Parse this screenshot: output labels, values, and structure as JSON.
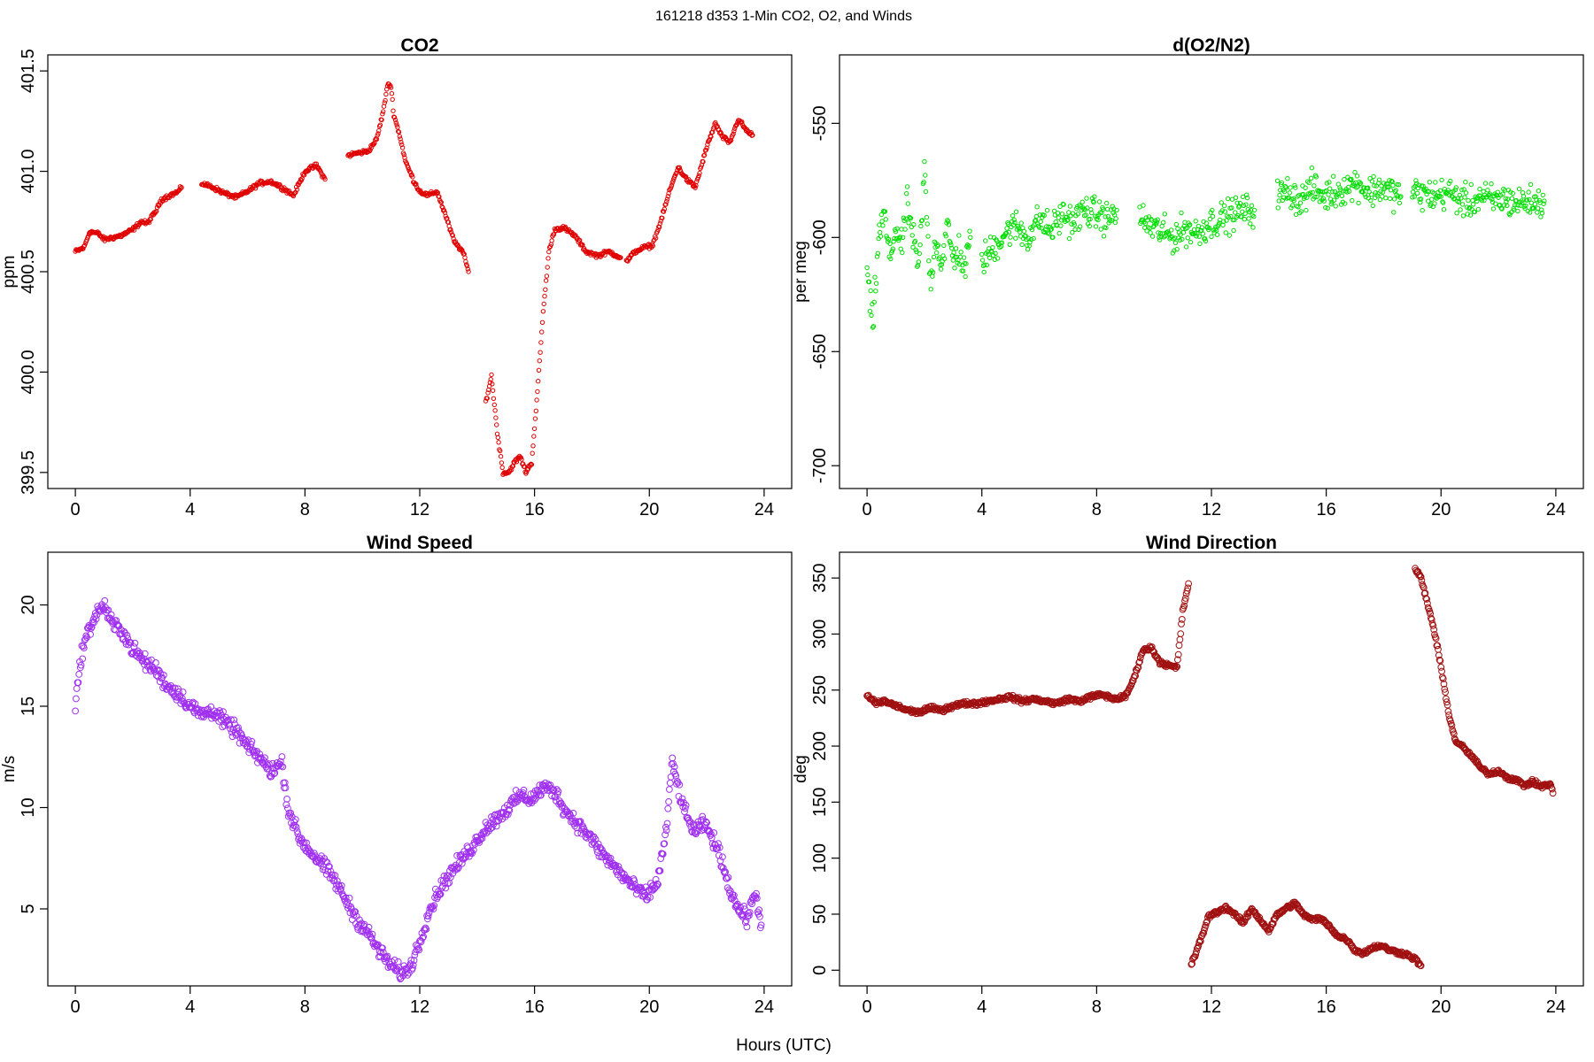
{
  "figure": {
    "title": "161218   d353   1-Min CO2, O2, and Winds",
    "xlabel": "Hours (UTC)"
  },
  "chart_data": [
    {
      "id": "co2",
      "type": "scatter",
      "title": "CO2",
      "ylabel": "ppm",
      "xlim": [
        -0.96,
        24.96
      ],
      "ylim": [
        399.42,
        401.58
      ],
      "xticks": [
        0,
        4,
        8,
        12,
        16,
        20,
        24
      ],
      "yticks": [
        399.5,
        400.0,
        400.5,
        401.0,
        401.5
      ],
      "ytick_labels": [
        "399.5",
        "400.0",
        "400.5",
        "401.0",
        "401.5"
      ],
      "color": "#e00000",
      "marker_size": 2.2,
      "segments": [
        {
          "x": [
            0.0,
            0.3,
            0.5,
            0.8,
            1.0,
            1.3,
            1.6,
            2.0,
            2.3,
            2.5,
            2.8,
            3.0,
            3.3,
            3.6,
            3.7
          ],
          "y": [
            400.6,
            400.62,
            400.7,
            400.69,
            400.66,
            400.67,
            400.68,
            400.71,
            400.75,
            400.74,
            400.8,
            400.86,
            400.88,
            400.9,
            400.92
          ]
        },
        {
          "x": [
            4.4,
            4.8,
            5.2,
            5.6,
            6.0,
            6.4,
            6.8,
            7.2,
            7.6,
            8.0,
            8.4,
            8.7
          ],
          "y": [
            400.94,
            400.92,
            400.89,
            400.87,
            400.9,
            400.94,
            400.95,
            400.92,
            400.88,
            401.0,
            401.03,
            400.96
          ]
        },
        {
          "x": [
            9.5,
            9.8,
            10.2,
            10.5,
            10.7,
            10.9,
            11.0,
            11.1,
            11.3,
            11.5,
            11.8,
            12.0,
            12.3,
            12.6,
            12.9,
            13.2,
            13.5,
            13.7
          ],
          "y": [
            401.08,
            401.09,
            401.1,
            401.16,
            401.28,
            401.44,
            401.42,
            401.28,
            401.18,
            401.05,
            400.95,
            400.9,
            400.88,
            400.9,
            400.78,
            400.65,
            400.6,
            400.5
          ]
        },
        {
          "x": [
            14.3,
            14.5,
            14.7,
            14.9,
            15.1,
            15.3,
            15.5,
            15.7,
            15.9,
            16.1,
            16.3,
            16.5,
            16.7,
            17.0,
            17.4,
            17.8,
            18.2,
            18.6,
            19.0
          ],
          "y": [
            399.85,
            399.98,
            399.7,
            399.5,
            399.5,
            399.55,
            399.58,
            399.5,
            399.55,
            399.9,
            400.3,
            400.6,
            400.71,
            400.72,
            400.68,
            400.6,
            400.58,
            400.6,
            400.57
          ]
        },
        {
          "x": [
            19.2,
            19.5,
            19.8,
            20.1,
            20.4,
            20.7,
            21.0,
            21.3,
            21.6,
            21.8,
            22.0,
            22.3,
            22.5,
            22.8,
            23.1,
            23.4,
            23.6
          ],
          "y": [
            400.55,
            400.6,
            400.62,
            400.63,
            400.75,
            400.9,
            401.02,
            400.96,
            400.92,
            401.02,
            401.12,
            401.24,
            401.18,
            401.14,
            401.26,
            401.2,
            401.18
          ]
        }
      ]
    },
    {
      "id": "o2",
      "type": "scatter",
      "title": "d(O2/N2)",
      "ylabel": "per meg",
      "xlim": [
        -0.96,
        24.96
      ],
      "ylim": [
        -710,
        -520
      ],
      "xticks": [
        0,
        4,
        8,
        12,
        16,
        20,
        24
      ],
      "yticks": [
        -700,
        -650,
        -600,
        -550
      ],
      "ytick_labels": [
        "-700",
        "-650",
        "-600",
        "-550"
      ],
      "color": "#00dd00",
      "marker_size": 2.2,
      "segments": [
        {
          "x": [
            0.0,
            0.2,
            0.4,
            0.6,
            0.8,
            1.0,
            1.2,
            1.4,
            1.6,
            1.8,
            2.0,
            2.2,
            2.4,
            2.6,
            2.8,
            3.0,
            3.2,
            3.4,
            3.6
          ],
          "y": [
            -615,
            -640,
            -600,
            -590,
            -610,
            -595,
            -605,
            -585,
            -600,
            -615,
            -570,
            -620,
            -600,
            -612,
            -595,
            -610,
            -605,
            -615,
            -600
          ]
        },
        {
          "x": [
            4.0,
            4.4,
            4.8,
            5.2,
            5.6,
            6.0,
            6.4,
            6.8,
            7.2,
            7.6,
            8.0,
            8.4,
            8.7
          ],
          "y": [
            -610,
            -605,
            -598,
            -595,
            -600,
            -592,
            -597,
            -590,
            -593,
            -588,
            -590,
            -592,
            -588
          ]
        },
        {
          "x": [
            9.5,
            9.9,
            10.3,
            10.7,
            11.1,
            11.5,
            11.9,
            12.3,
            12.7,
            13.1,
            13.5
          ],
          "y": [
            -592,
            -595,
            -598,
            -600,
            -596,
            -598,
            -594,
            -592,
            -590,
            -588,
            -588
          ]
        },
        {
          "x": [
            14.3,
            14.7,
            15.1,
            15.5,
            15.9,
            16.3,
            16.7,
            17.1,
            17.5,
            17.9,
            18.3,
            18.6
          ],
          "y": [
            -582,
            -580,
            -584,
            -578,
            -582,
            -580,
            -578,
            -576,
            -580,
            -578,
            -580,
            -582
          ]
        },
        {
          "x": [
            19.0,
            19.4,
            19.8,
            20.2,
            20.6,
            21.0,
            21.4,
            21.8,
            22.2,
            22.6,
            23.0,
            23.4,
            23.6
          ],
          "y": [
            -580,
            -581,
            -582,
            -580,
            -583,
            -585,
            -582,
            -584,
            -583,
            -585,
            -584,
            -585,
            -584
          ]
        }
      ]
    },
    {
      "id": "wind-speed",
      "type": "scatter",
      "title": "Wind Speed",
      "ylabel": "m/s",
      "xlim": [
        -0.96,
        24.96
      ],
      "ylim": [
        1.2,
        22.6
      ],
      "xticks": [
        0,
        4,
        8,
        12,
        16,
        20,
        24
      ],
      "yticks": [
        5,
        10,
        15,
        20
      ],
      "ytick_labels": [
        "5",
        "10",
        "15",
        "20"
      ],
      "color": "#a030f0",
      "marker_size": 3.4,
      "segments": [
        {
          "x": [
            0.0,
            0.2,
            0.4,
            0.7,
            1.0,
            1.3,
            1.6,
            2.0,
            2.4,
            2.8,
            3.2,
            3.6,
            4.0,
            4.4,
            4.8,
            5.2,
            5.6,
            6.0,
            6.4,
            6.8,
            7.2,
            7.4,
            7.8,
            8.2,
            8.6,
            9.0,
            9.4,
            9.8,
            10.2,
            10.6,
            11.0,
            11.4,
            11.7,
            12.0,
            12.3,
            12.7,
            13.1,
            13.5,
            13.9,
            14.3,
            14.7,
            15.1,
            15.5,
            15.9,
            16.3,
            16.7,
            17.1,
            17.5,
            17.9,
            18.3,
            18.7,
            19.1,
            19.5,
            19.9,
            20.3,
            20.6,
            20.8,
            21.0,
            21.3,
            21.6,
            21.9,
            22.2,
            22.5,
            22.8,
            23.1,
            23.4,
            23.7,
            23.9
          ],
          "y": [
            15.0,
            17.5,
            18.5,
            19.5,
            20.0,
            19.0,
            18.8,
            17.8,
            17.2,
            16.8,
            16.0,
            15.6,
            15.0,
            14.6,
            14.8,
            14.2,
            13.8,
            13.0,
            12.5,
            11.8,
            12.2,
            10.0,
            8.5,
            7.8,
            7.2,
            6.5,
            5.5,
            4.5,
            3.8,
            2.9,
            2.2,
            1.8,
            2.2,
            3.4,
            4.8,
            6.0,
            6.8,
            7.5,
            8.2,
            9.0,
            9.5,
            10.0,
            10.6,
            10.4,
            11.0,
            10.8,
            9.8,
            9.2,
            8.6,
            7.8,
            7.2,
            6.6,
            6.0,
            5.6,
            6.4,
            9.0,
            12.3,
            11.0,
            9.5,
            8.8,
            9.2,
            8.5,
            7.5,
            6.0,
            5.0,
            4.5,
            5.8,
            4.2
          ]
        }
      ]
    },
    {
      "id": "wind-direction",
      "type": "scatter",
      "title": "Wind Direction",
      "ylabel": "deg",
      "xlim": [
        -0.96,
        24.96
      ],
      "ylim": [
        -14,
        373
      ],
      "xticks": [
        0,
        4,
        8,
        12,
        16,
        20,
        24
      ],
      "yticks": [
        0,
        50,
        100,
        150,
        200,
        250,
        300,
        350
      ],
      "ytick_labels": [
        "0",
        "50",
        "100",
        "150",
        "200",
        "250",
        "300",
        "350"
      ],
      "color": "#a01010",
      "marker_size": 3.4,
      "segments": [
        {
          "x": [
            0.0,
            0.3,
            0.6,
            1.0,
            1.4,
            1.8,
            2.2,
            2.6,
            3.0,
            3.4,
            3.8,
            4.2,
            4.6,
            5.0,
            5.4,
            5.8,
            6.2,
            6.6,
            7.0,
            7.4,
            7.8,
            8.2,
            8.6,
            9.0,
            9.3,
            9.6,
            9.9,
            10.2,
            10.5,
            10.8,
            11.0,
            11.2
          ],
          "y": [
            245,
            238,
            240,
            236,
            232,
            230,
            234,
            232,
            236,
            238,
            238,
            240,
            242,
            244,
            240,
            242,
            240,
            238,
            242,
            240,
            244,
            246,
            242,
            244,
            260,
            285,
            288,
            275,
            272,
            270,
            320,
            345
          ]
        },
        {
          "x": [
            11.3,
            11.6,
            11.9,
            12.2,
            12.5,
            12.8,
            13.1,
            13.4,
            13.7,
            14.0,
            14.3,
            14.6,
            14.9,
            15.2,
            15.5,
            15.8,
            16.1,
            16.4,
            16.7,
            17.0,
            17.3,
            17.6,
            17.9,
            18.2,
            18.5,
            18.8,
            19.1,
            19.3
          ],
          "y": [
            5,
            25,
            48,
            52,
            56,
            50,
            42,
            55,
            45,
            35,
            50,
            55,
            60,
            50,
            45,
            46,
            40,
            30,
            28,
            18,
            15,
            20,
            22,
            18,
            16,
            14,
            10,
            4
          ]
        },
        {
          "x": [
            19.1,
            19.3,
            19.5,
            19.7,
            19.9,
            20.1,
            20.3,
            20.5,
            20.8,
            21.1,
            21.4,
            21.7,
            22.0,
            22.3,
            22.6,
            22.9,
            23.2,
            23.5,
            23.8,
            23.9
          ],
          "y": [
            358,
            350,
            330,
            310,
            285,
            255,
            225,
            205,
            198,
            190,
            180,
            175,
            178,
            172,
            170,
            165,
            168,
            164,
            166,
            158
          ]
        }
      ]
    }
  ]
}
